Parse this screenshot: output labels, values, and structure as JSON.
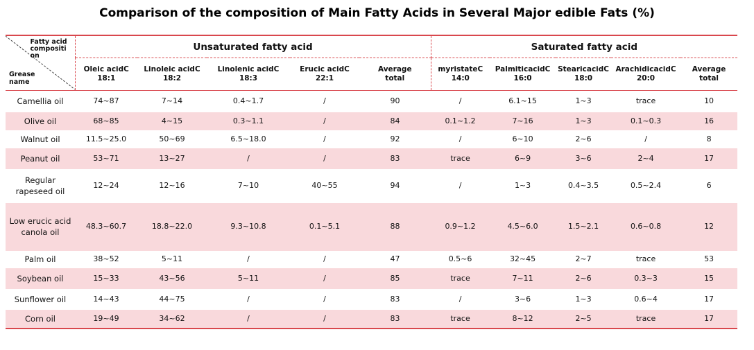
{
  "title": "Comparison of the composition of Main Fatty Acids in Several Major edible Fats (%)",
  "header": {
    "corner_top_lines": [
      "Fatty acid",
      "compositi",
      "on"
    ],
    "corner_bottom_lines": [
      "Grease",
      "name"
    ],
    "groups": [
      "Unsaturated fatty acid",
      "Saturated fatty acid"
    ],
    "columns": [
      [
        "Oleic acidC",
        "18:1"
      ],
      [
        "Linoleic acidC",
        "18:2"
      ],
      [
        "Linolenic acidC",
        "18:3"
      ],
      [
        "Erucic acidC",
        "22:1"
      ],
      [
        "Average",
        "total"
      ],
      [
        "myristateC",
        "14:0"
      ],
      [
        "PalmiticacidC",
        "16:0"
      ],
      [
        "StearicacidC",
        "18:0"
      ],
      [
        "ArachidicacidC",
        "20:0"
      ],
      [
        "Average",
        "total"
      ]
    ]
  },
  "rows": [
    {
      "name": [
        "Camellia oil"
      ],
      "values": [
        "74~87",
        "7~14",
        "0.4~1.7",
        "/",
        "90",
        "/",
        "6.1~15",
        "1~3",
        "trace",
        "10"
      ]
    },
    {
      "name": [
        "Olive oil"
      ],
      "values": [
        "68~85",
        "4~15",
        "0.3~1.1",
        "/",
        "84",
        "0.1~1.2",
        "7~16",
        "1~3",
        "0.1~0.3",
        "16"
      ]
    },
    {
      "name": [
        "Walnut oil"
      ],
      "values": [
        "11.5~25.0",
        "50~69",
        "6.5~18.0",
        "/",
        "92",
        "/",
        "6~10",
        "2~6",
        "/",
        "8"
      ]
    },
    {
      "name": [
        "Peanut oil"
      ],
      "values": [
        "53~71",
        "13~27",
        "/",
        "/",
        "83",
        "trace",
        "6~9",
        "3~6",
        "2~4",
        "17"
      ]
    },
    {
      "name": [
        "Regular",
        "rapeseed oil"
      ],
      "values": [
        "12~24",
        "12~16",
        "7~10",
        "40~55",
        "94",
        "/",
        "1~3",
        "0.4~3.5",
        "0.5~2.4",
        "6"
      ]
    },
    {
      "name": [
        "Low erucic acid",
        "canola oil"
      ],
      "values": [
        "48.3~60.7",
        "18.8~22.0",
        "9.3~10.8",
        "0.1~5.1",
        "88",
        "0.9~1.2",
        "4.5~6.0",
        "1.5~2.1",
        "0.6~0.8",
        "12"
      ]
    },
    {
      "name": [
        "Palm oil"
      ],
      "values": [
        "38~52",
        "5~11",
        "/",
        "/",
        "47",
        "0.5~6",
        "32~45",
        "2~7",
        "trace",
        "53"
      ]
    },
    {
      "name": [
        "Soybean oil"
      ],
      "values": [
        "15~33",
        "43~56",
        "5~11",
        "/",
        "85",
        "trace",
        "7~11",
        "2~6",
        "0.3~3",
        "15"
      ]
    },
    {
      "name": [
        "Sunflower oil"
      ],
      "values": [
        "14~43",
        "44~75",
        "/",
        "/",
        "83",
        "/",
        "3~6",
        "1~3",
        "0.6~4",
        "17"
      ]
    },
    {
      "name": [
        "Corn oil"
      ],
      "values": [
        "19~49",
        "34~62",
        "/",
        "/",
        "83",
        "trace",
        "8~12",
        "2~5",
        "trace",
        "17"
      ]
    }
  ],
  "colors": {
    "rule": "#d9474d",
    "band": "#f9d9dc"
  }
}
